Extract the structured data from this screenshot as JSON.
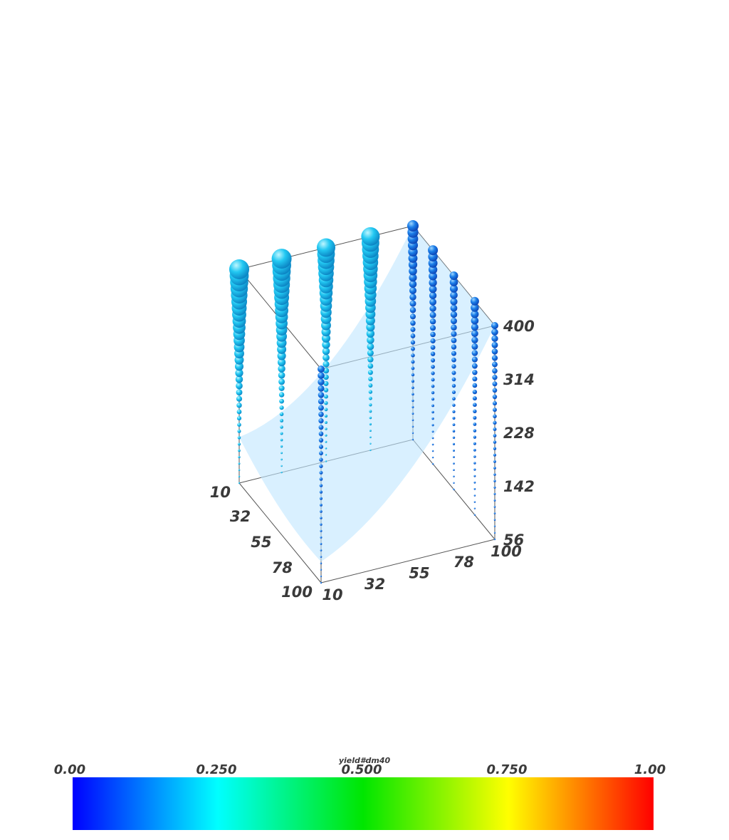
{
  "chart_data": {
    "type": "scatter",
    "title": "",
    "axes": {
      "x": {
        "range": [
          10,
          100
        ],
        "ticks": [
          "10",
          "32",
          "55",
          "78",
          "100"
        ]
      },
      "y": {
        "range": [
          10,
          100
        ],
        "ticks": [
          "100",
          "78",
          "55",
          "32",
          "10"
        ]
      },
      "z": {
        "range": [
          56,
          400
        ],
        "ticks": [
          "56",
          "142",
          "228",
          "314",
          "400"
        ]
      }
    },
    "grid": false,
    "colorbar": {
      "title": "yield#dm40",
      "range": [
        0,
        1
      ],
      "ticks": [
        "0.00",
        "0.250",
        "0.500",
        "0.750",
        "1.00"
      ],
      "colors": [
        "#0000ff",
        "#00c8ff",
        "#00ffff",
        "#00ff96",
        "#00e600",
        "#c8ff00",
        "#ffff00",
        "#ffa000",
        "#ff0000"
      ]
    },
    "surface": {
      "color": "#bfe6ff",
      "opacity": 0.6
    },
    "series": [
      {
        "x": 10,
        "y": 10,
        "z": [
          56,
          400
        ],
        "marker_max": 14,
        "color": "#00b4f0"
      },
      {
        "x": 10,
        "y": 32,
        "z": [
          56,
          400
        ],
        "marker_max": 14,
        "color": "#00b4f0"
      },
      {
        "x": 10,
        "y": 55,
        "z": [
          56,
          400
        ],
        "marker_max": 13,
        "color": "#0aa0f0"
      },
      {
        "x": 10,
        "y": 78,
        "z": [
          56,
          400
        ],
        "marker_max": 13,
        "color": "#0aa0f0"
      },
      {
        "x": 10,
        "y": 100,
        "z": [
          56,
          400
        ],
        "marker_max": 8,
        "color": "#1470e6"
      },
      {
        "x": 32,
        "y": 100,
        "z": [
          56,
          400
        ],
        "marker_max": 7,
        "color": "#1470e6"
      },
      {
        "x": 55,
        "y": 100,
        "z": [
          56,
          400
        ],
        "marker_max": 6,
        "color": "#1464e6"
      },
      {
        "x": 78,
        "y": 100,
        "z": [
          56,
          400
        ],
        "marker_max": 6,
        "color": "#1464e6"
      },
      {
        "x": 100,
        "y": 100,
        "z": [
          56,
          400
        ],
        "marker_max": 5,
        "color": "#1464e6"
      },
      {
        "x": 100,
        "y": 10,
        "z": [
          56,
          400
        ],
        "marker_max": 5,
        "color": "#1464e6"
      }
    ]
  }
}
